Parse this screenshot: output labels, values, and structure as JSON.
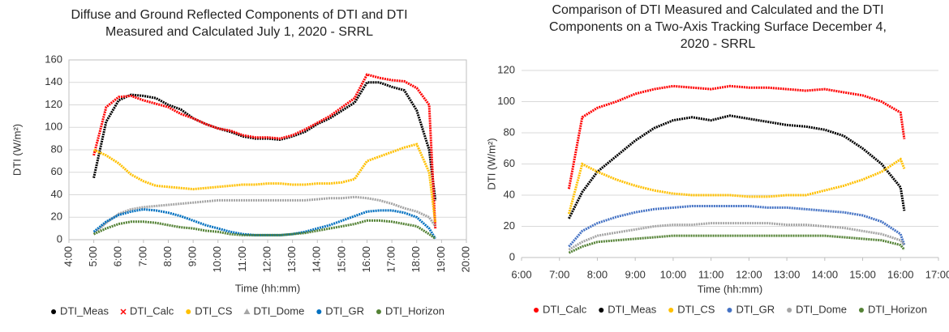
{
  "chart_data": [
    {
      "type": "line",
      "title": "Diffuse and Ground Reflected Components of DTI and DTI Measured and Calculated July 1, 2020 - SRRL",
      "x_label": "Time (hh:mm)",
      "y_label": "DTI (W/m²)",
      "plot_border": true,
      "grid": true,
      "legend": "bottom",
      "x": [
        5,
        5.5,
        6,
        6.5,
        7,
        7.5,
        8,
        8.5,
        9,
        9.5,
        10,
        10.5,
        11,
        11.5,
        12,
        12.5,
        13,
        13.5,
        14,
        14.5,
        15,
        15.5,
        16,
        16.5,
        17,
        17.5,
        18,
        18.5,
        18.75
      ],
      "xlim": [
        4,
        20
      ],
      "xticks": [
        {
          "value": 4,
          "label": "4:00"
        },
        {
          "value": 5,
          "label": "5:00"
        },
        {
          "value": 6,
          "label": "6:00"
        },
        {
          "value": 7,
          "label": "7:00"
        },
        {
          "value": 8,
          "label": "8:00"
        },
        {
          "value": 9,
          "label": "9:00"
        },
        {
          "value": 10,
          "label": "10:00"
        },
        {
          "value": 11,
          "label": "11:00"
        },
        {
          "value": 12,
          "label": "12:00"
        },
        {
          "value": 13,
          "label": "13:00"
        },
        {
          "value": 14,
          "label": "14:00"
        },
        {
          "value": 15,
          "label": "15:00"
        },
        {
          "value": 16,
          "label": "16:00"
        },
        {
          "value": 17,
          "label": "17:00"
        },
        {
          "value": 18,
          "label": "18:00"
        },
        {
          "value": 19,
          "label": "19:00"
        },
        {
          "value": 20,
          "label": "20:00"
        }
      ],
      "ylim": [
        0,
        160
      ],
      "yticks": [
        0,
        20,
        40,
        60,
        80,
        100,
        120,
        140,
        160
      ],
      "series": [
        {
          "name": "DTI_Meas",
          "color": "#000000",
          "marker": "circle",
          "values": [
            55,
            105,
            124,
            129,
            128,
            126,
            120,
            116,
            108,
            103,
            99,
            96,
            92,
            90,
            90,
            89,
            92,
            96,
            103,
            108,
            115,
            122,
            140,
            140,
            136,
            133,
            115,
            80,
            35
          ]
        },
        {
          "name": "DTI_Calc",
          "color": "#ff0000",
          "marker": "x",
          "values": [
            75,
            118,
            127,
            128,
            124,
            121,
            118,
            112,
            108,
            103,
            99,
            97,
            93,
            91,
            91,
            90,
            93,
            98,
            104,
            110,
            118,
            126,
            147,
            144,
            142,
            141,
            135,
            120,
            10
          ]
        },
        {
          "name": "DTI_CS",
          "color": "#ffc000",
          "marker": "circle",
          "values": [
            80,
            75,
            68,
            58,
            52,
            48,
            47,
            46,
            45,
            46,
            47,
            48,
            49,
            49,
            50,
            50,
            49,
            49,
            50,
            50,
            51,
            54,
            70,
            74,
            78,
            82,
            85,
            60,
            15
          ]
        },
        {
          "name": "DTI_Dome",
          "color": "#a5a5a5",
          "marker": "triangle",
          "values": [
            5,
            15,
            23,
            27,
            29,
            30,
            31,
            32,
            33,
            34,
            35,
            35,
            35,
            35,
            35,
            35,
            35,
            35,
            36,
            37,
            37,
            38,
            37,
            35,
            32,
            28,
            25,
            20,
            12
          ]
        },
        {
          "name": "DTI_GR",
          "color": "#0070c0",
          "marker": "circle",
          "values": [
            7,
            16,
            22,
            25,
            27,
            26,
            24,
            21,
            17,
            13,
            10,
            7,
            5,
            4,
            4,
            4,
            5,
            7,
            10,
            13,
            17,
            21,
            25,
            26,
            26,
            24,
            20,
            10,
            1
          ]
        },
        {
          "name": "DTI_Horizon",
          "color": "#548235",
          "marker": "circle",
          "values": [
            5,
            10,
            14,
            16,
            16,
            15,
            13,
            11,
            10,
            8,
            7,
            5,
            4,
            4,
            4,
            4,
            5,
            6,
            8,
            10,
            12,
            14,
            17,
            17,
            16,
            14,
            12,
            5,
            1
          ]
        }
      ]
    },
    {
      "type": "line",
      "title": "Comparison of DTI Measured and Calculated and the DTI Components on a Two-Axis Tracking Surface December 4, 2020 - SRRL",
      "x_label": "Time (hh:mm)",
      "y_label": "DTI (W/m²)",
      "plot_border": false,
      "grid": true,
      "legend": "bottom",
      "x": [
        7.25,
        7.6,
        8,
        8.5,
        9,
        9.5,
        10,
        10.5,
        11,
        11.5,
        12,
        12.5,
        13,
        13.5,
        14,
        14.5,
        15,
        15.5,
        16,
        16.1
      ],
      "xlim": [
        6,
        17
      ],
      "xticks": [
        {
          "value": 6,
          "label": "6:00"
        },
        {
          "value": 7,
          "label": "7:00"
        },
        {
          "value": 8,
          "label": "8:00"
        },
        {
          "value": 9,
          "label": "9:00"
        },
        {
          "value": 10,
          "label": "10:00"
        },
        {
          "value": 11,
          "label": "11:00"
        },
        {
          "value": 12,
          "label": "12:00"
        },
        {
          "value": 13,
          "label": "13:00"
        },
        {
          "value": 14,
          "label": "14:00"
        },
        {
          "value": 15,
          "label": "15:00"
        },
        {
          "value": 16,
          "label": "16:00"
        },
        {
          "value": 17,
          "label": "17:00"
        }
      ],
      "ylim": [
        0,
        120
      ],
      "yticks": [
        0,
        20,
        40,
        60,
        80,
        100,
        120
      ],
      "series": [
        {
          "name": "DTI_Calc",
          "color": "#ff0000",
          "marker": "circle",
          "values": [
            44,
            90,
            96,
            100,
            105,
            108,
            110,
            109,
            108,
            110,
            109,
            109,
            108,
            107,
            108,
            106,
            104,
            100,
            93,
            76
          ]
        },
        {
          "name": "DTI_Meas",
          "color": "#000000",
          "marker": "circle",
          "values": [
            25,
            42,
            55,
            65,
            75,
            83,
            88,
            90,
            88,
            91,
            89,
            87,
            85,
            84,
            82,
            78,
            70,
            60,
            45,
            30
          ]
        },
        {
          "name": "DTI_CS",
          "color": "#ffc000",
          "marker": "circle",
          "values": [
            28,
            60,
            55,
            50,
            46,
            43,
            41,
            40,
            40,
            40,
            39,
            39,
            40,
            40,
            43,
            46,
            50,
            55,
            63,
            57
          ]
        },
        {
          "name": "DTI_GR",
          "color": "#4472c4",
          "marker": "circle",
          "values": [
            7,
            17,
            22,
            26,
            29,
            31,
            32,
            33,
            33,
            33,
            33,
            32,
            32,
            31,
            30,
            29,
            27,
            23,
            15,
            8
          ]
        },
        {
          "name": "DTI_Dome",
          "color": "#a5a5a5",
          "marker": "circle",
          "values": [
            5,
            10,
            14,
            16,
            18,
            20,
            21,
            21,
            22,
            22,
            22,
            22,
            21,
            21,
            20,
            19,
            17,
            15,
            11,
            8
          ]
        },
        {
          "name": "DTI_Horizon",
          "color": "#548235",
          "marker": "circle",
          "values": [
            3,
            7,
            10,
            11,
            12,
            13,
            14,
            14,
            14,
            14,
            14,
            14,
            14,
            14,
            14,
            13,
            12,
            11,
            8,
            5
          ]
        }
      ]
    }
  ]
}
